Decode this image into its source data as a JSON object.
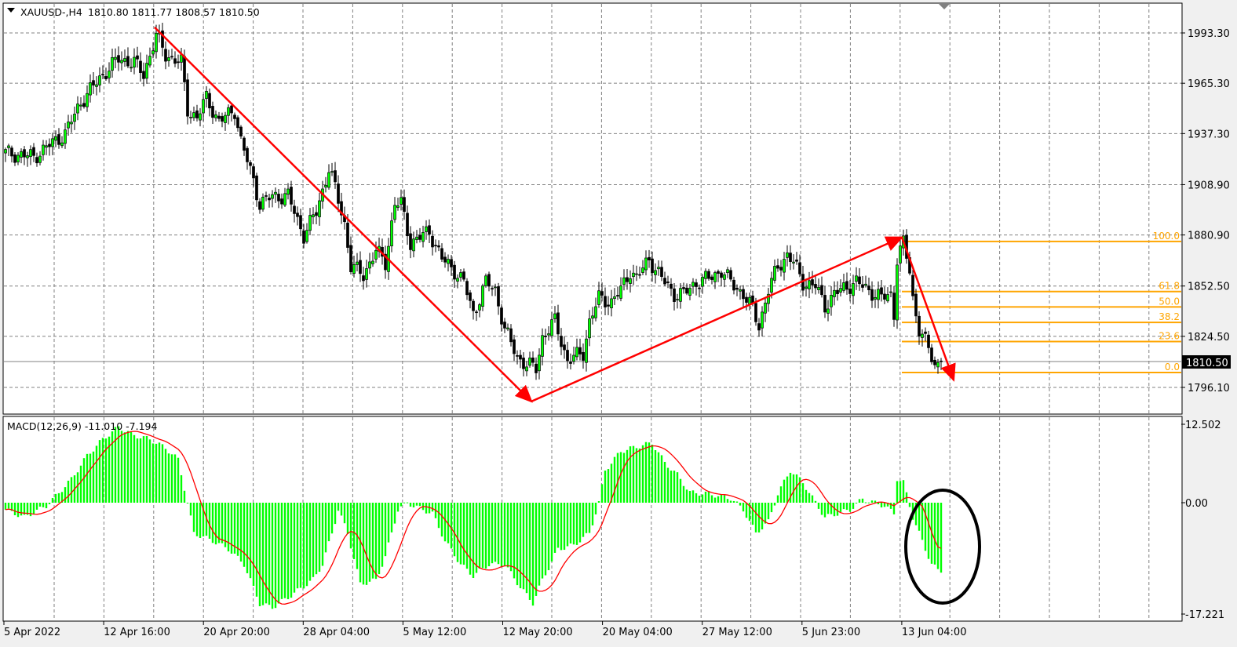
{
  "header": {
    "symbol": "XAUUSD-,H4",
    "ohlc": "1810.80 1811.77 1808.57 1810.50"
  },
  "macd_header": "MACD(12,26,9) -11.010 -7.194",
  "colors": {
    "bull_candle": "#00ff00",
    "bear_candle": "#000000",
    "macd_histogram": "#00ff00",
    "macd_signal": "#ff0000",
    "trendline": "#ff0000",
    "fibonacci": "#ffa500",
    "ellipse": "#000000",
    "price_label_bg": "#000000"
  },
  "price_axis": {
    "ticks": [
      "1993.30",
      "1965.30",
      "1937.30",
      "1908.90",
      "1880.90",
      "1852.50",
      "1824.50",
      "1796.10"
    ],
    "current_price": "1810.50"
  },
  "macd_axis": {
    "ticks": [
      "12.502",
      "0.00",
      "-17.221"
    ]
  },
  "time_axis": {
    "ticks": [
      "5 Apr 2022",
      "12 Apr 16:00",
      "20 Apr 20:00",
      "28 Apr 04:00",
      "5 May 12:00",
      "12 May 20:00",
      "20 May 04:00",
      "27 May 12:00",
      "5 Jun 23:00",
      "13 Jun 04:00"
    ]
  },
  "chart_data": [
    {
      "type": "candlestick",
      "title": "XAUUSD-,H4",
      "ylim": [
        1783,
        2008
      ],
      "grid": true,
      "close_by_bar": [
        [
          0,
          1926.5
        ],
        [
          9,
          1924.4
        ],
        [
          14,
          1930.9
        ],
        [
          19,
          1937.4
        ],
        [
          24,
          1954.9
        ],
        [
          31,
          1970.2
        ],
        [
          36,
          1978.9
        ],
        [
          41,
          1976.7
        ],
        [
          44,
          1970.2
        ],
        [
          48,
          1992.0
        ],
        [
          51,
          1981.1
        ],
        [
          56,
          1976.7
        ],
        [
          58,
          1950.5
        ],
        [
          61,
          1946.2
        ],
        [
          64,
          1957.1
        ],
        [
          68,
          1944.0
        ],
        [
          73,
          1950.5
        ],
        [
          75,
          1933.1
        ],
        [
          79,
          1911.3
        ],
        [
          81,
          1898.2
        ],
        [
          85,
          1902.5
        ],
        [
          90,
          1902.5
        ],
        [
          95,
          1880.7
        ],
        [
          99,
          1893.8
        ],
        [
          103,
          1917.8
        ],
        [
          105,
          1906.9
        ],
        [
          108,
          1887.3
        ],
        [
          110,
          1863.3
        ],
        [
          114,
          1858.9
        ],
        [
          118,
          1872.0
        ],
        [
          121,
          1865.5
        ],
        [
          124,
          1898.2
        ],
        [
          126,
          1898.2
        ],
        [
          129,
          1876.4
        ],
        [
          133,
          1880.7
        ],
        [
          135,
          1882.9
        ],
        [
          139,
          1867.6
        ],
        [
          143,
          1861.1
        ],
        [
          146,
          1854.6
        ],
        [
          149,
          1837.1
        ],
        [
          153,
          1854.6
        ],
        [
          156,
          1850.2
        ],
        [
          159,
          1828.4
        ],
        [
          163,
          1813.1
        ],
        [
          166,
          1808.7
        ],
        [
          169,
          1806.6
        ],
        [
          171,
          1824.0
        ],
        [
          175,
          1832.8
        ],
        [
          179,
          1811.0
        ],
        [
          184,
          1815.3
        ],
        [
          186,
          1832.8
        ],
        [
          189,
          1845.8
        ],
        [
          193,
          1843.7
        ],
        [
          196,
          1850.2
        ],
        [
          199,
          1861.1
        ],
        [
          201,
          1856.8
        ],
        [
          205,
          1867.6
        ],
        [
          209,
          1856.8
        ],
        [
          213,
          1848.0
        ],
        [
          216,
          1848.0
        ],
        [
          220,
          1854.6
        ],
        [
          224,
          1856.8
        ],
        [
          228,
          1861.1
        ],
        [
          231,
          1854.6
        ],
        [
          235,
          1848.0
        ],
        [
          238,
          1839.3
        ],
        [
          240,
          1830.6
        ],
        [
          243,
          1850.2
        ],
        [
          246,
          1863.3
        ],
        [
          249,
          1869.8
        ],
        [
          251,
          1865.5
        ],
        [
          254,
          1854.6
        ],
        [
          258,
          1852.4
        ],
        [
          261,
          1841.5
        ],
        [
          264,
          1848.0
        ],
        [
          268,
          1852.4
        ],
        [
          271,
          1854.6
        ],
        [
          275,
          1850.2
        ],
        [
          279,
          1845.8
        ],
        [
          282,
          1848.0
        ],
        [
          283,
          1837.1
        ],
        [
          284,
          1867.6
        ],
        [
          286,
          1876.4
        ],
        [
          288,
          1861.1
        ],
        [
          289,
          1845.8
        ],
        [
          291,
          1828.4
        ],
        [
          294,
          1817.5
        ],
        [
          296,
          1808.7
        ],
        [
          298,
          1810.5
        ]
      ],
      "last": {
        "open": 1810.8,
        "high": 1811.77,
        "low": 1808.57,
        "close": 1810.5
      },
      "trendlines": [
        {
          "from": [
            47.5,
            1996.4
          ],
          "to": [
            167.5,
            1788.3
          ]
        },
        {
          "from": [
            167.5,
            1788.3
          ],
          "to": [
            285.5,
            1879.6
          ]
        },
        {
          "from": [
            285.5,
            1879.6
          ],
          "to": [
            302,
            1800.2
          ]
        }
      ],
      "fibonacci": {
        "start_bar": 285.5,
        "high": 1877.3,
        "low": 1804.4,
        "levels": [
          {
            "label": "100.0",
            "ratio": 1.0
          },
          {
            "label": "61.8",
            "ratio": 0.618
          },
          {
            "label": "50.0",
            "ratio": 0.5
          },
          {
            "label": "38.2",
            "ratio": 0.382
          },
          {
            "label": "23.6",
            "ratio": 0.236
          },
          {
            "label": "0.0",
            "ratio": 0.0
          }
        ]
      }
    },
    {
      "type": "bar",
      "title": "MACD(12,26,9)",
      "ylim": [
        -17.221,
        12.502
      ],
      "main": -11.01,
      "signal": -7.194,
      "macd_by_bar": [
        [
          0,
          -1.1
        ],
        [
          6,
          -2.3
        ],
        [
          13,
          -0.5
        ],
        [
          16,
          1.0
        ],
        [
          21,
          3.7
        ],
        [
          26,
          7.4
        ],
        [
          31,
          10.0
        ],
        [
          36,
          11.9
        ],
        [
          41,
          10.6
        ],
        [
          46,
          10.0
        ],
        [
          51,
          8.6
        ],
        [
          55,
          6.8
        ],
        [
          58,
          0
        ],
        [
          60,
          -4.8
        ],
        [
          66,
          -6.0
        ],
        [
          71,
          -7.3
        ],
        [
          76,
          -9.7
        ],
        [
          81,
          -15.9
        ],
        [
          85,
          -16.5
        ],
        [
          91,
          -14.6
        ],
        [
          98,
          -12.1
        ],
        [
          101,
          -9.7
        ],
        [
          104,
          -4.8
        ],
        [
          106,
          -1.1
        ],
        [
          109,
          -4.8
        ],
        [
          113,
          -12.8
        ],
        [
          118,
          -12.2
        ],
        [
          121,
          -8.5
        ],
        [
          125,
          -1.1
        ],
        [
          128,
          0
        ],
        [
          130,
          -0.5
        ],
        [
          136,
          -1.7
        ],
        [
          140,
          -6.0
        ],
        [
          145,
          -9.7
        ],
        [
          149,
          -11.5
        ],
        [
          154,
          -9.7
        ],
        [
          159,
          -9.7
        ],
        [
          164,
          -13.3
        ],
        [
          168,
          -15.8
        ],
        [
          171,
          -12.2
        ],
        [
          176,
          -7.3
        ],
        [
          181,
          -6.7
        ],
        [
          186,
          -4.8
        ],
        [
          189,
          0
        ],
        [
          191,
          5.1
        ],
        [
          196,
          8.1
        ],
        [
          201,
          8.8
        ],
        [
          206,
          9.4
        ],
        [
          210,
          6.3
        ],
        [
          214,
          4.4
        ],
        [
          218,
          1.6
        ],
        [
          224,
          1.4
        ],
        [
          231,
          0.7
        ],
        [
          235,
          -1.1
        ],
        [
          239,
          -4.8
        ],
        [
          243,
          -3.0
        ],
        [
          246,
          1.4
        ],
        [
          250,
          5.1
        ],
        [
          254,
          3.2
        ],
        [
          258,
          0
        ],
        [
          261,
          -2.3
        ],
        [
          265,
          -1.7
        ],
        [
          269,
          -1.1
        ],
        [
          273,
          0.6
        ],
        [
          276,
          0.1
        ],
        [
          280,
          -0.5
        ],
        [
          283,
          -1.7
        ],
        [
          284,
          3.8
        ],
        [
          286,
          3.2
        ],
        [
          289,
          -2.3
        ],
        [
          293,
          -7.3
        ],
        [
          295,
          -9.7
        ],
        [
          298,
          -11.0
        ]
      ],
      "ellipse_around_bar": 299
    }
  ]
}
